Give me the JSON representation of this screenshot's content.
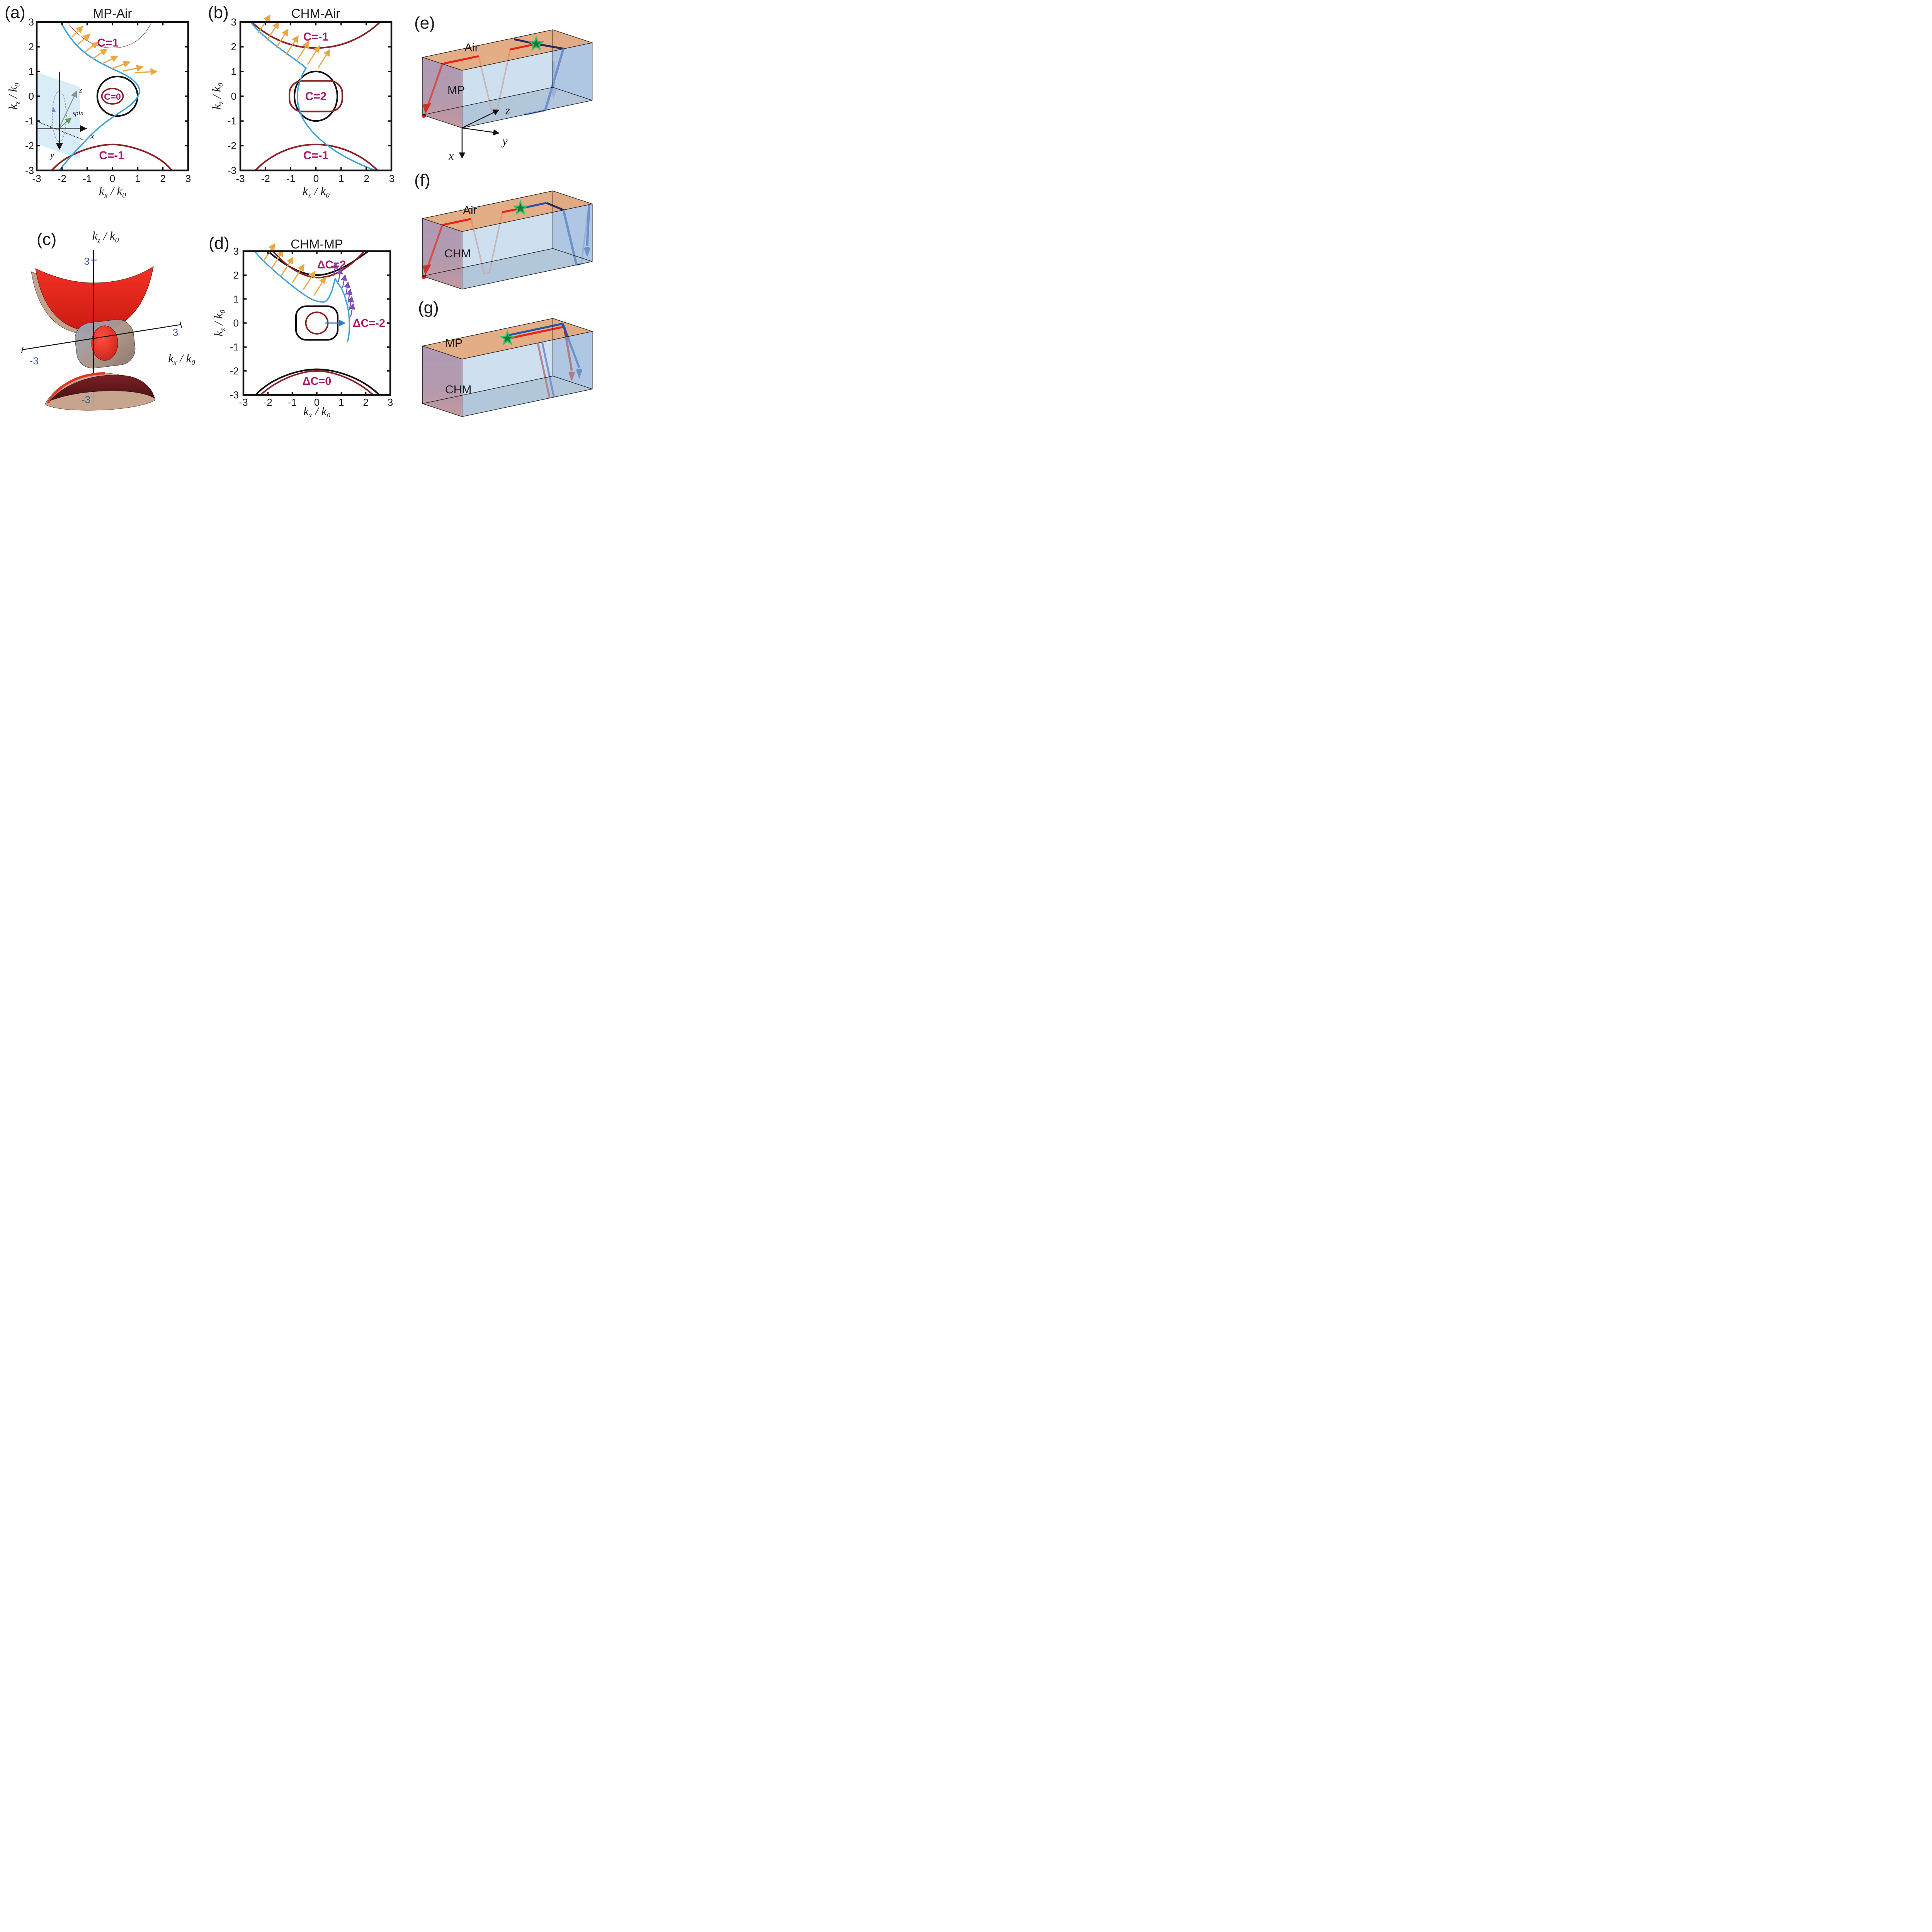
{
  "figure": {
    "description": "Topological photonic surface states: equifrequency plots, 3D band surfaces and ray-path boxes"
  },
  "colors": {
    "bulk_band": "#8E2126",
    "chern_label": "#A81B63",
    "surface_state": "#3BA3DB",
    "velocity_arrows": "#E9A840",
    "purple_arrows": "#8150B5",
    "delta_arrow": "#2E7BC8",
    "ray_red": "#EF2016",
    "ray_navy": "#272B5E",
    "ray_blue": "#2A52B0",
    "star_fill": "#147A3C",
    "star_edge": "#35C06A",
    "box_top": "#E1A97E",
    "box_front": "#A6C4E4",
    "box_left": "#A68FAD",
    "axis_blue_ticks": "#3A57A7",
    "surface_red": "#E8241A",
    "surface_tan": "#C4A18A",
    "surface_maroon": "#6E1E20"
  },
  "ticks": {
    "x": [
      "-3",
      "-2",
      "-1",
      "0",
      "1",
      "2",
      "3"
    ],
    "y": [
      "3",
      "2",
      "1",
      "0",
      "-1",
      "-2",
      "-3"
    ]
  },
  "panels": {
    "a": {
      "letter": "(a)",
      "title": "MP-Air",
      "xlabel": "k_x / k_0",
      "ylabel": "k_z / k_0",
      "c_top": "C=1",
      "c_mid": "C=0",
      "c_bot": "C=-1",
      "inset": {
        "z": "z",
        "spin": "spin",
        "x": "x",
        "y": "y"
      }
    },
    "b": {
      "letter": "(b)",
      "title": "CHM-Air",
      "xlabel": "k_x / k_0",
      "ylabel": "k_z / k_0",
      "c_top": "C=-1",
      "c_mid": "C=2",
      "c_bot": "C=-1"
    },
    "c": {
      "letter": "(c)",
      "top_label": "k_z / k_0",
      "right_label": "k_x / k_0",
      "tick_top": "3",
      "tick_bottom": "-3",
      "tick_left": "-3",
      "tick_right": "3"
    },
    "d": {
      "letter": "(d)",
      "title": "CHM-MP",
      "xlabel": "k_x / k_0",
      "ylabel": "k_z / k_0",
      "dc_top": "ΔC=2",
      "dc_right": "ΔC=-2",
      "dc_bot": "ΔC=0"
    },
    "e": {
      "letter": "(e)",
      "top_material": "Air",
      "left_material": "MP",
      "axis_z": "z",
      "axis_y": "y",
      "axis_x": "x"
    },
    "f": {
      "letter": "(f)",
      "top_material": "Air",
      "left_material": "CHM"
    },
    "g": {
      "letter": "(g)",
      "top_material": "MP",
      "left_material": "CHM"
    }
  },
  "chart_data": [
    {
      "id": "a",
      "type": "line",
      "title": "MP-Air",
      "xlabel": "k_x / k_0",
      "ylabel": "k_z / k_0",
      "xlim": [
        -3,
        3
      ],
      "ylim": [
        -3,
        3
      ],
      "grid": false,
      "series": [
        {
          "name": "MP bulk band upper",
          "chern": "C=1",
          "color": "#8E2126",
          "points": [
            [
              -1.8,
              3
            ],
            [
              -0.9,
              2.2
            ],
            [
              0,
              1.95
            ],
            [
              0.9,
              2.3
            ],
            [
              1.55,
              3
            ]
          ]
        },
        {
          "name": "MP bulk band lower",
          "chern": "C=-1",
          "color": "#8E2126",
          "points": [
            [
              -2.4,
              -3
            ],
            [
              -1.2,
              -2.3
            ],
            [
              0,
              -1.95
            ],
            [
              1.4,
              -2.35
            ],
            [
              2.35,
              -3
            ]
          ]
        },
        {
          "name": "air light circle",
          "color": "#000000",
          "circle": {
            "center": [
              0.2,
              0
            ],
            "r": 0.8
          }
        },
        {
          "name": "MP inner band",
          "chern": "C=0",
          "color": "#8E2126",
          "ellipse": {
            "center": [
              0,
              0
            ],
            "rx": 0.42,
            "ry": 0.31
          }
        },
        {
          "name": "surface state",
          "color": "#3BA3DB",
          "points": [
            [
              -2.05,
              3
            ],
            [
              -1.2,
              1.85
            ],
            [
              -0.3,
              1.15
            ],
            [
              0.5,
              0.85
            ],
            [
              1.0,
              0.45
            ],
            [
              1.0,
              -0.1
            ],
            [
              0.7,
              -0.75
            ],
            [
              -0.4,
              -1.5
            ],
            [
              -1.5,
              -2.4
            ],
            [
              -2.15,
              -3
            ]
          ]
        }
      ],
      "quiver": {
        "color": "#E9A840",
        "desc": "group velocity of surface state",
        "tails": [
          [
            -1.62,
            2.38
          ],
          [
            -1.38,
            2.08
          ],
          [
            -1.1,
            1.78
          ],
          [
            -0.78,
            1.52
          ],
          [
            -0.42,
            1.3
          ],
          [
            -0.02,
            1.12
          ],
          [
            0.42,
            1.02
          ],
          [
            0.88,
            0.95
          ]
        ]
      },
      "annotations": [
        "C=1",
        "C=0",
        "C=-1"
      ]
    },
    {
      "id": "b",
      "type": "line",
      "title": "CHM-Air",
      "xlabel": "k_x / k_0",
      "ylabel": "k_z / k_0",
      "xlim": [
        -3,
        3
      ],
      "ylim": [
        -3,
        3
      ],
      "grid": false,
      "series": [
        {
          "name": "CHM bulk band upper",
          "chern": "C=-1",
          "color": "#8E2126",
          "points": [
            [
              -2.55,
              3
            ],
            [
              -1.3,
              2.25
            ],
            [
              0,
              1.95
            ],
            [
              1.3,
              2.25
            ],
            [
              2.55,
              3
            ]
          ]
        },
        {
          "name": "CHM bulk band lower",
          "chern": "C=-1",
          "color": "#8E2126",
          "points": [
            [
              -2.4,
              -3
            ],
            [
              -1.2,
              -2.3
            ],
            [
              0,
              -1.95
            ],
            [
              1.2,
              -2.3
            ],
            [
              2.45,
              -3
            ]
          ]
        },
        {
          "name": "air light ellipse",
          "color": "#000000",
          "ellipse": {
            "center": [
              0,
              0
            ],
            "rx": 0.85,
            "ry": 1.0
          }
        },
        {
          "name": "CHM inner band",
          "chern": "C=2",
          "color": "#8E2126",
          "rounded_rect": {
            "x": [
              -1.05,
              1.05
            ],
            "z": [
              -0.62,
              0.62
            ]
          }
        },
        {
          "name": "surface state",
          "color": "#3BA3DB",
          "points": [
            [
              -2.6,
              3
            ],
            [
              -1.6,
              2.2
            ],
            [
              -0.8,
              1.55
            ],
            [
              -0.35,
              1.15
            ],
            [
              -0.65,
              0.8
            ],
            [
              -0.73,
              0.2
            ],
            [
              -0.68,
              -0.4
            ],
            [
              -0.5,
              -0.85
            ],
            [
              0.3,
              -1.6
            ],
            [
              1.3,
              -2.3
            ],
            [
              2.35,
              -3
            ]
          ]
        }
      ],
      "quiver": {
        "color": "#E9A840",
        "tails": [
          [
            -2.3,
            2.55
          ],
          [
            -1.95,
            2.25
          ],
          [
            -1.58,
            1.95
          ],
          [
            -1.18,
            1.68
          ],
          [
            -0.75,
            1.45
          ],
          [
            -0.33,
            1.28
          ],
          [
            0.08,
            1.13
          ]
        ]
      },
      "annotations": [
        "C=-1",
        "C=2",
        "C=-1"
      ]
    },
    {
      "id": "d",
      "type": "line",
      "title": "CHM-MP",
      "xlabel": "k_x / k_0",
      "ylabel": "k_z / k_0",
      "xlim": [
        -3,
        3
      ],
      "ylim": [
        -3,
        3
      ],
      "grid": false,
      "series": [
        {
          "name": "MP band upper (black)",
          "color": "#111111",
          "points": [
            [
              -2.0,
              3
            ],
            [
              0,
              2.0
            ],
            [
              2.1,
              3
            ]
          ]
        },
        {
          "name": "CHM band upper (maroon)",
          "chern": "ΔC=2",
          "color": "#8E2126",
          "points": [
            [
              -1.8,
              3
            ],
            [
              0,
              1.9
            ],
            [
              1.95,
              3
            ]
          ]
        },
        {
          "name": "MP central pocket (black)",
          "color": "#111111",
          "rounded_rect": {
            "x": [
              -0.85,
              0.85
            ],
            "z": [
              -0.7,
              0.7
            ]
          }
        },
        {
          "name": "CHM central pocket (maroon)",
          "color": "#8E2126",
          "circle": {
            "center": [
              0,
              0
            ],
            "r": 0.45
          }
        },
        {
          "name": "MP band lower (black)",
          "color": "#111111",
          "points": [
            [
              -2.5,
              -3
            ],
            [
              0,
              -1.93
            ],
            [
              2.55,
              -3
            ]
          ]
        },
        {
          "name": "CHM band lower (maroon)",
          "chern": "ΔC=0",
          "color": "#8E2126",
          "points": [
            [
              -2.3,
              -3
            ],
            [
              0,
              -2.0
            ],
            [
              2.3,
              -3
            ]
          ]
        },
        {
          "name": "surface state",
          "color": "#3BA3DB",
          "points": [
            [
              -2.55,
              3
            ],
            [
              -1.6,
              2.05
            ],
            [
              -0.75,
              1.35
            ],
            [
              -0.1,
              0.95
            ],
            [
              0.35,
              0.9
            ],
            [
              0.6,
              1.3
            ],
            [
              0.75,
              1.85
            ],
            [
              1.0,
              1.45
            ],
            [
              1.2,
              0.9
            ],
            [
              1.3,
              0.4
            ],
            [
              1.33,
              -0.1
            ],
            [
              1.25,
              -0.78
            ]
          ]
        }
      ],
      "quiver": {
        "color": "#E9A840",
        "tails": [
          [
            -2.2,
            2.55
          ],
          [
            -1.85,
            2.28
          ],
          [
            -1.45,
            1.98
          ],
          [
            -1.0,
            1.68
          ],
          [
            -0.55,
            1.4
          ],
          [
            -0.12,
            1.15
          ]
        ]
      },
      "quiver2": {
        "color": "#8150B5",
        "tails": [
          [
            0.68,
            1.95
          ],
          [
            0.88,
            1.72
          ],
          [
            1.05,
            1.45
          ],
          [
            1.18,
            1.15
          ],
          [
            1.27,
            0.85
          ],
          [
            1.33,
            0.55
          ],
          [
            1.38,
            0.25
          ]
        ]
      },
      "arrow_annotation": {
        "label": "ΔC=-2",
        "from": [
          0.35,
          0
        ],
        "to": [
          1.28,
          0
        ],
        "color": "#2E7BC8"
      },
      "annotations": [
        "ΔC=2",
        "ΔC=-2",
        "ΔC=0"
      ]
    },
    {
      "id": "c",
      "type": "3d-surfaces",
      "axes": {
        "vertical": "k_z / k_0",
        "horizontal": "k_x / k_0"
      },
      "ticks": {
        "vertical": [
          "3",
          "-3"
        ],
        "horizontal": [
          "-3",
          "3"
        ]
      },
      "desc": "equifrequency surfaces: upper red bowl with tan shell, central toroidal pocket with red ellipsoid, lower maroon dome"
    }
  ]
}
